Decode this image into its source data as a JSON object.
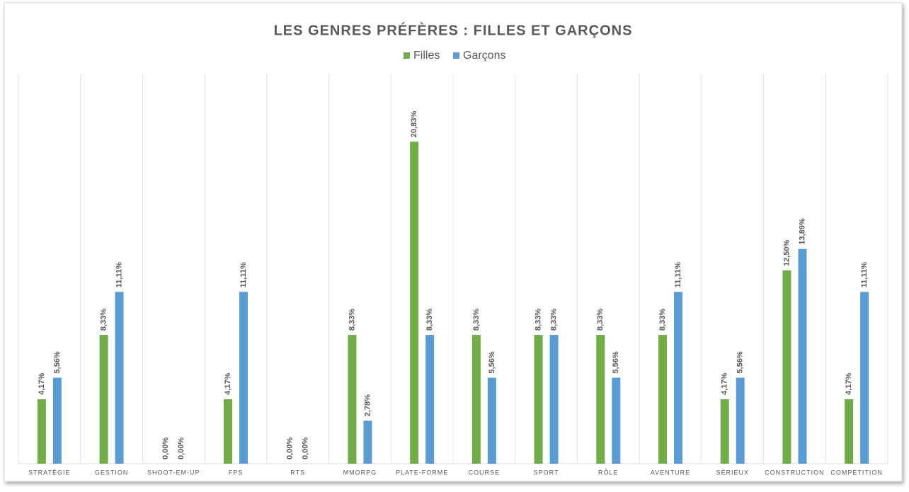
{
  "chart_data": {
    "type": "bar",
    "title": "LES GENRES PRÉFÈRES : FILLES ET GARÇONS",
    "categories": [
      "STRATÉGIE",
      "GESTION",
      "SHOOT-EM-UP",
      "FPS",
      "RTS",
      "MMORPG",
      "PLATE-FORME",
      "COURSE",
      "SPORT",
      "RÔLE",
      "AVENTURE",
      "SÉRIEUX",
      "CONSTRUCTION",
      "COMPÉTITION"
    ],
    "series": [
      {
        "name": "Filles",
        "color": "#70ad47",
        "values": [
          4.17,
          8.33,
          0,
          4.17,
          0,
          8.33,
          20.83,
          8.33,
          8.33,
          8.33,
          8.33,
          4.17,
          12.5,
          4.17
        ],
        "value_labels": [
          "4,17%",
          "8,33%",
          "0,00%",
          "4,17%",
          "0,00%",
          "8,33%",
          "20,83%",
          "8,33%",
          "8,33%",
          "8,33%",
          "8,33%",
          "4,17%",
          "12,50%",
          "4,17%"
        ]
      },
      {
        "name": "Garçons",
        "color": "#5b9bd5",
        "values": [
          5.56,
          11.11,
          0,
          11.11,
          0,
          2.78,
          8.33,
          5.56,
          8.33,
          5.56,
          11.11,
          5.56,
          13.89,
          11.11
        ],
        "value_labels": [
          "5,56%",
          "11,11%",
          "0,00%",
          "11,11%",
          "0,00%",
          "2,78%",
          "8,33%",
          "5,56%",
          "8,33%",
          "5,56%",
          "11,11%",
          "5,56%",
          "13,89%",
          "11,11%"
        ]
      }
    ],
    "ylim": [
      0,
      25
    ],
    "legend": "top"
  }
}
